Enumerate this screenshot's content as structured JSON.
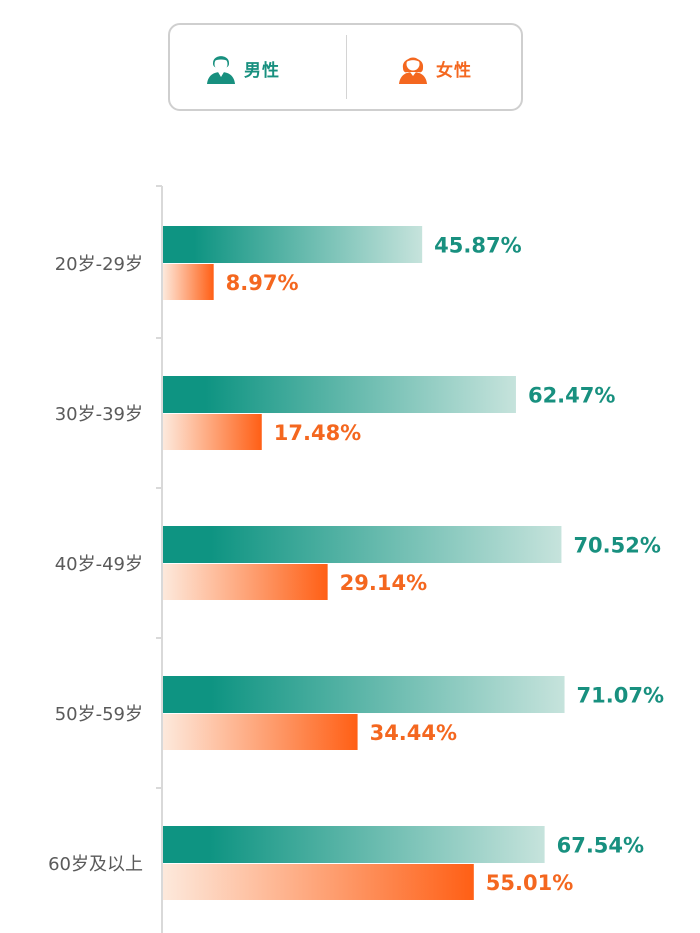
{
  "legend": {
    "male_label": "男性",
    "female_label": "女性",
    "male_icon": "male-user-icon",
    "female_icon": "female-user-icon"
  },
  "colors": {
    "male_dark": "#0e9482",
    "male_light": "#c6e3dc",
    "female_dark": "#ff5f15",
    "female_light": "#fde9dc"
  },
  "chart_data": {
    "type": "bar",
    "orientation": "horizontal",
    "categories": [
      "20岁-29岁",
      "30岁-39岁",
      "40岁-49岁",
      "50岁-59岁",
      "60岁及以上"
    ],
    "series": [
      {
        "name": "男性",
        "values": [
          45.87,
          62.47,
          70.52,
          71.07,
          67.54
        ],
        "labels": [
          "45.87%",
          "62.47%",
          "70.52%",
          "71.07%",
          "67.54%"
        ]
      },
      {
        "name": "女性",
        "values": [
          8.97,
          17.48,
          29.14,
          34.44,
          55.01
        ],
        "labels": [
          "8.97%",
          "17.48%",
          "29.14%",
          "34.44%",
          "55.01%"
        ]
      }
    ],
    "xlim": [
      0,
      100
    ],
    "unit": "%",
    "grid": false,
    "legend_position": "top-center"
  }
}
